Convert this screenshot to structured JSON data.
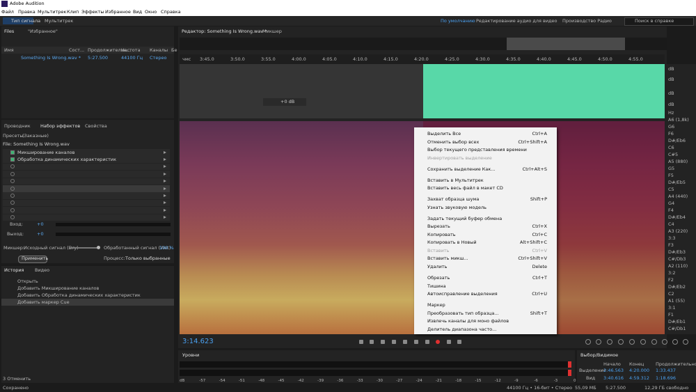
{
  "window_title": "Adobe Audition",
  "menu": [
    "Файл",
    "Правка",
    "Мультитрек",
    "Клип",
    "Эффекты",
    "Избранное",
    "Вид",
    "Окно",
    "Справка"
  ],
  "toolbar": {
    "modes": [
      "Тип сигнала",
      "Мультитрек"
    ],
    "workspaces": [
      "По умолчанию",
      "Редактирование аудио для видео",
      "Производство Радио"
    ],
    "search": "Поиск в справке"
  },
  "files_panel": {
    "tabs": [
      "Files",
      "\"Избранное\""
    ],
    "columns": [
      "Имя",
      "Сост...",
      "Продолжительн...",
      "Частота",
      "Каналы",
      "Бе"
    ],
    "file": {
      "name": "Something Is Wrong.wav *",
      "duration": "5:27.500",
      "rate": "44100 Гц",
      "channels": "Стерео"
    }
  },
  "effects_panel": {
    "tabs": [
      "Проводник",
      "Набор эффектов",
      "Свойства"
    ],
    "presets_label": "Пресеты:",
    "preset": "(Заказные)",
    "file": "File: Something Is Wrong.wav",
    "effects": [
      "Микширование каналов",
      "Обработка динамических характеристик"
    ],
    "input_label": "Вход:",
    "input_value": "+0",
    "output_label": "Выход:",
    "output_value": "+0",
    "mixer_label": "Микшер:",
    "dry": "Исходный сигнал (Dry)",
    "wet": "Обработанный сигнал (Wet)",
    "wet_value": "100 %",
    "apply": "Применить",
    "process_label": "Процесс:",
    "process": "Только выбранные"
  },
  "history_panel": {
    "tabs": [
      "История",
      "Видео"
    ],
    "items": [
      "Открыть",
      "Добавить Микширование каналов",
      "Добавить Обработка динамических характеристик",
      "Добавить маркер Cue"
    ],
    "undo": "3 Отменить",
    "status": "Сохранено"
  },
  "editor": {
    "tabs": [
      "Редактор: Something Is Wrong.wav *",
      "Микшер"
    ],
    "ruler_unit": "чмс",
    "ruler_ticks": [
      "3:45.0",
      "3:50.0",
      "3:55.0",
      "4:00.0",
      "4:05.0",
      "4:10.0",
      "4:15.0",
      "4:20.0",
      "4:25.0",
      "4:30.0",
      "4:35.0",
      "4:40.0",
      "4:45.0",
      "4:50.0",
      "4:55.0"
    ],
    "gain": "+0 dB",
    "time": "3:14.623",
    "amp_labels": [
      "dB",
      "dB",
      "dB",
      "dB"
    ],
    "freq_labels": [
      "Hz",
      "A6 (1,8k)",
      "G6",
      "F6",
      "D#/Eb6",
      "C6",
      "C#5",
      "A5 (880)",
      "G5",
      "F5",
      "D#/Eb5",
      "C5",
      "A4 (440)",
      "G4",
      "F4",
      "D#/Eb4",
      "C4",
      "A3 (220)",
      "3:3",
      "F3",
      "D#/Eb3",
      "C#/Db3",
      "A2 (110)",
      "3:2",
      "F2",
      "D#/Eb2",
      "C2",
      "A1 (55)",
      "3:1",
      "F1",
      "D#/Eb1",
      "C#/Db1"
    ]
  },
  "context_menu": {
    "groups": [
      [
        {
          "label": "Выделить Все",
          "shortcut": "Ctrl+A"
        },
        {
          "label": "Отменить выбор всех",
          "shortcut": "Ctrl+Shift+A"
        },
        {
          "label": "Выбор текущего представления времени"
        },
        {
          "label": "Инвертировать выделение",
          "disabled": true
        }
      ],
      [
        {
          "label": "Сохранить выделение Как...",
          "shortcut": "Ctrl+Alt+S"
        }
      ],
      [
        {
          "label": "Вставить в Мультитрек",
          "submenu": true
        },
        {
          "label": "Вставить весь файл в макет CD",
          "submenu": true
        }
      ],
      [
        {
          "label": "Захват образца шума",
          "shortcut": "Shift+P"
        },
        {
          "label": "Узнать звуковую модель"
        }
      ],
      [
        {
          "label": "Задать текущий буфер обмена",
          "submenu": true
        },
        {
          "label": "Вырезать",
          "shortcut": "Ctrl+X"
        },
        {
          "label": "Копировать",
          "shortcut": "Ctrl+C"
        },
        {
          "label": "Копировать в Новый",
          "shortcut": "Alt+Shift+C"
        },
        {
          "label": "Вставить",
          "shortcut": "Ctrl+V",
          "disabled": true
        },
        {
          "label": "Вставить микш...",
          "shortcut": "Ctrl+Shift+V"
        },
        {
          "label": "Удалить",
          "shortcut": "Delete"
        }
      ],
      [
        {
          "label": "Обрезать",
          "shortcut": "Ctrl+T"
        },
        {
          "label": "Тишина"
        },
        {
          "label": "Автоисправление выделения",
          "shortcut": "Ctrl+U"
        }
      ],
      [
        {
          "label": "Маркер",
          "submenu": true
        },
        {
          "label": "Преобразовать тип образца...",
          "shortcut": "Shift+T"
        },
        {
          "label": "Извлечь каналы для моно файлов"
        },
        {
          "label": "Делитель диапазона часто..."
        }
      ]
    ]
  },
  "levels_panel": {
    "title": "Уровни",
    "scale": [
      "dB",
      "-57",
      "-54",
      "-51",
      "-48",
      "-45",
      "-42",
      "-39",
      "-36",
      "-33",
      "-30",
      "-27",
      "-24",
      "-21",
      "-18",
      "-15",
      "-12",
      "-9",
      "-6",
      "-3",
      "0"
    ]
  },
  "selection_panel": {
    "title": "Выбор/Видимое",
    "columns": [
      "Начало",
      "Конец",
      "Продолжительность"
    ],
    "rows": [
      {
        "label": "Выделение",
        "values": [
          "2:46.563",
          "4:20.000",
          "1:33.437"
        ]
      },
      {
        "label": "Вид",
        "values": [
          "3:40.616",
          "4:59.312",
          "1:18.696"
        ]
      }
    ]
  },
  "status_bar": [
    "44100 Гц • 16-бит • Стерео",
    "55,09 МБ",
    "5:27.500",
    "12,29 ГБ свободно"
  ]
}
